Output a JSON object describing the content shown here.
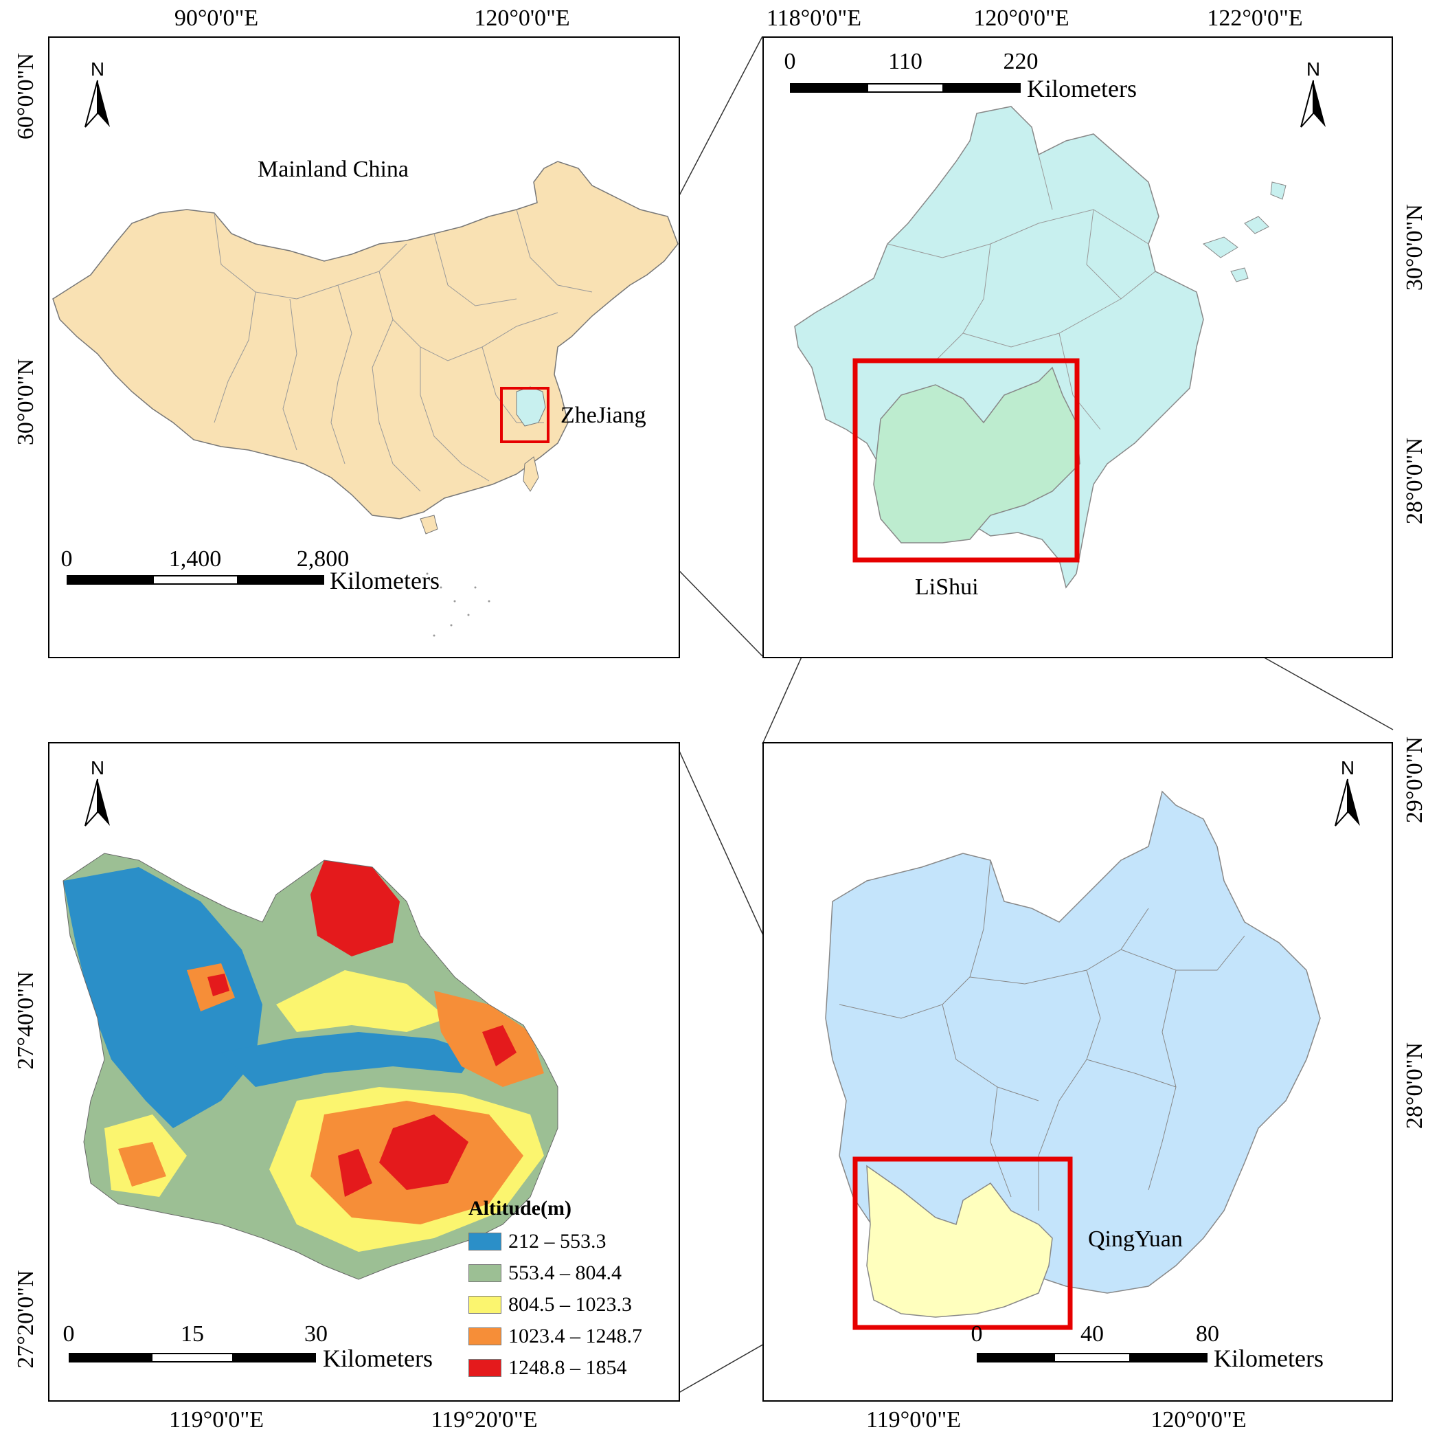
{
  "colors": {
    "china_fill": "#f9e1b3",
    "zhejiang_fill": "#c8f0ef",
    "lishui_fill": "#bdeccf",
    "lishui_county_fill": "#c4e4fb",
    "qingyuan_fill": "#ffffbe",
    "highlight_box": "#e60000",
    "border": "#000000"
  },
  "panel_china": {
    "label_mainland": "Mainland China",
    "label_zhejiang": "ZheJiang",
    "top_ticks": [
      "90°0'0\"E",
      "120°0'0\"E"
    ],
    "left_ticks": [
      "60°0'0\"N",
      "30°0'0\"N"
    ],
    "scale": {
      "labels": [
        "0",
        "1,400",
        "2,800"
      ],
      "unit": "Kilometers"
    },
    "north": "N",
    "north_icon": "north-arrow-icon"
  },
  "panel_zhejiang": {
    "label_lishui": "LiShui",
    "top_ticks": [
      "118°0'0\"E",
      "120°0'0\"E",
      "122°0'0\"E"
    ],
    "right_ticks": [
      "30°0'0\"N",
      "28°0'0\"N"
    ],
    "scale": {
      "labels": [
        "0",
        "110",
        "220"
      ],
      "unit": "Kilometers"
    },
    "north": "N"
  },
  "panel_lishui": {
    "label_qingyuan": "QingYuan",
    "right_ticks": [
      "29°0'0\"N",
      "28°0'0\"N"
    ],
    "bottom_ticks": [
      "119°0'0\"E",
      "120°0'0\"E"
    ],
    "scale": {
      "labels": [
        "0",
        "40",
        "80"
      ],
      "unit": "Kilometers"
    },
    "north": "N"
  },
  "panel_qingyuan": {
    "left_ticks": [
      "27°40'0\"N",
      "27°20'0\"N"
    ],
    "bottom_ticks": [
      "119°0'0\"E",
      "119°20'0\"E"
    ],
    "scale": {
      "labels": [
        "0",
        "15",
        "30"
      ],
      "unit": "Kilometers"
    },
    "north": "N",
    "legend": {
      "title": "Altitude(m)",
      "classes": [
        {
          "label": "212 – 553.3",
          "color": "#2b8fc8"
        },
        {
          "label": "553.4 – 804.4",
          "color": "#9cbf94"
        },
        {
          "label": "804.5 – 1023.3",
          "color": "#fbf56f"
        },
        {
          "label": "1023.4 – 1248.7",
          "color": "#f68e38"
        },
        {
          "label": "1248.8 – 1854",
          "color": "#e41a1c"
        }
      ]
    }
  }
}
